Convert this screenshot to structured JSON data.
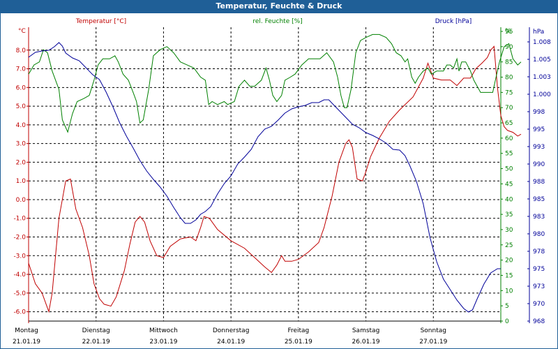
{
  "window": {
    "title": "Temperatur, Feuchte & Druck"
  },
  "chart_data": {
    "type": "line",
    "title": "Temperatur, Feuchte & Druck",
    "x_ticks": [
      {
        "day": "Montag",
        "date": "21.01.19"
      },
      {
        "day": "Dienstag",
        "date": "22.01.19"
      },
      {
        "day": "Mittwoch",
        "date": "23.01.19"
      },
      {
        "day": "Donnerstag",
        "date": "24.01.19"
      },
      {
        "day": "Freitag",
        "date": "25.01.19"
      },
      {
        "day": "Samstag",
        "date": "26.01.19"
      },
      {
        "day": "Sonntag",
        "date": "27.01.19"
      }
    ],
    "x_range": [
      0,
      7
    ],
    "axes": {
      "temp": {
        "label": "Temperatur [°C]",
        "unit": "°C",
        "ylim": [
          -6.5,
          9.0
        ],
        "ticks": [
          "8.0",
          "7.0",
          "6.0",
          "5.0",
          "4.0",
          "3.0",
          "2.0",
          "1.0",
          "0.0",
          "-1.0",
          "-2.0",
          "-3.0",
          "-4.0",
          "-5.0",
          "-6.0"
        ],
        "tick_values": [
          8,
          7,
          6,
          5,
          4,
          3,
          2,
          1,
          0,
          -1,
          -2,
          -3,
          -4,
          -5,
          -6
        ]
      },
      "humidity": {
        "label": "rel. Feuchte [%]",
        "unit": "%",
        "ylim": [
          0,
          95
        ],
        "ticks": [
          "95",
          "90",
          "85",
          "80",
          "75",
          "70",
          "65",
          "60",
          "55",
          "50",
          "45",
          "40",
          "35",
          "30",
          "25",
          "20",
          "15",
          "10",
          "5",
          "0"
        ],
        "tick_values": [
          95,
          90,
          85,
          80,
          75,
          70,
          65,
          60,
          55,
          50,
          45,
          40,
          35,
          30,
          25,
          20,
          15,
          10,
          5,
          0
        ]
      },
      "pressure": {
        "label": "Druck [hPa]",
        "unit": "hPa",
        "ylim": [
          968,
          1009.5
        ],
        "ticks": [
          "1.008",
          "1.005",
          "1.003",
          "1.000",
          "998",
          "995",
          "993",
          "990",
          "988",
          "985",
          "983",
          "980",
          "978",
          "975",
          "973",
          "970",
          "968"
        ],
        "tick_values": [
          1008,
          1005.5,
          1003,
          1000.5,
          998,
          995.5,
          993,
          990.5,
          988,
          985.5,
          983,
          980.5,
          978,
          975.5,
          973,
          970.5,
          968
        ]
      }
    },
    "series": [
      {
        "name": "Temperatur",
        "axis": "temp",
        "color": "#c00000",
        "points": [
          [
            0,
            -3.4
          ],
          [
            0.1,
            -4.5
          ],
          [
            0.2,
            -5.0
          ],
          [
            0.3,
            -6.0
          ],
          [
            0.35,
            -5.0
          ],
          [
            0.45,
            -1.0
          ],
          [
            0.55,
            1.0
          ],
          [
            0.62,
            1.1
          ],
          [
            0.7,
            -0.5
          ],
          [
            0.8,
            -1.5
          ],
          [
            0.9,
            -3.0
          ],
          [
            0.97,
            -4.5
          ],
          [
            1.05,
            -5.3
          ],
          [
            1.12,
            -5.6
          ],
          [
            1.22,
            -5.7
          ],
          [
            1.3,
            -5.2
          ],
          [
            1.42,
            -3.8
          ],
          [
            1.5,
            -2.4
          ],
          [
            1.58,
            -1.2
          ],
          [
            1.65,
            -0.9
          ],
          [
            1.72,
            -1.2
          ],
          [
            1.8,
            -2.2
          ],
          [
            1.9,
            -3.0
          ],
          [
            2.0,
            -3.1
          ],
          [
            2.1,
            -2.5
          ],
          [
            2.25,
            -2.1
          ],
          [
            2.4,
            -2.0
          ],
          [
            2.48,
            -2.2
          ],
          [
            2.55,
            -1.5
          ],
          [
            2.6,
            -0.9
          ],
          [
            2.68,
            -1.0
          ],
          [
            2.8,
            -1.6
          ],
          [
            3.0,
            -2.2
          ],
          [
            3.2,
            -2.6
          ],
          [
            3.38,
            -3.2
          ],
          [
            3.5,
            -3.6
          ],
          [
            3.6,
            -3.9
          ],
          [
            3.68,
            -3.5
          ],
          [
            3.75,
            -3.0
          ],
          [
            3.8,
            -3.3
          ],
          [
            3.9,
            -3.3
          ],
          [
            4.0,
            -3.2
          ],
          [
            4.15,
            -2.8
          ],
          [
            4.3,
            -2.3
          ],
          [
            4.38,
            -1.5
          ],
          [
            4.45,
            -0.5
          ],
          [
            4.5,
            0.2
          ],
          [
            4.6,
            2.0
          ],
          [
            4.7,
            3.0
          ],
          [
            4.75,
            3.2
          ],
          [
            4.8,
            2.8
          ],
          [
            4.87,
            1.1
          ],
          [
            4.95,
            1.0
          ],
          [
            5.0,
            1.5
          ],
          [
            5.07,
            2.3
          ],
          [
            5.2,
            3.3
          ],
          [
            5.35,
            4.2
          ],
          [
            5.5,
            4.8
          ],
          [
            5.7,
            5.5
          ],
          [
            5.85,
            6.5
          ],
          [
            5.92,
            7.3
          ],
          [
            6.0,
            6.5
          ],
          [
            6.12,
            6.4
          ],
          [
            6.25,
            6.4
          ],
          [
            6.35,
            6.1
          ],
          [
            6.45,
            6.5
          ],
          [
            6.55,
            6.5
          ],
          [
            6.63,
            7.0
          ],
          [
            6.72,
            7.3
          ],
          [
            6.8,
            7.6
          ],
          [
            6.85,
            8.0
          ],
          [
            6.9,
            8.2
          ],
          [
            6.95,
            6.0
          ],
          [
            7.0,
            4.5
          ],
          [
            7.05,
            3.9
          ],
          [
            7.1,
            3.7
          ],
          [
            7.18,
            3.6
          ],
          [
            7.25,
            3.4
          ],
          [
            7.3,
            3.5
          ]
        ]
      },
      {
        "name": "rel. Feuchte",
        "axis": "humidity",
        "color": "#008000",
        "points": [
          [
            0,
            81
          ],
          [
            0.08,
            84
          ],
          [
            0.16,
            85
          ],
          [
            0.22,
            89
          ],
          [
            0.28,
            88
          ],
          [
            0.35,
            82
          ],
          [
            0.45,
            76
          ],
          [
            0.5,
            66
          ],
          [
            0.58,
            62
          ],
          [
            0.65,
            68
          ],
          [
            0.72,
            72
          ],
          [
            0.82,
            73
          ],
          [
            0.9,
            74
          ],
          [
            0.97,
            79
          ],
          [
            1.03,
            84
          ],
          [
            1.1,
            86
          ],
          [
            1.2,
            86
          ],
          [
            1.28,
            87
          ],
          [
            1.33,
            85
          ],
          [
            1.4,
            81
          ],
          [
            1.48,
            79
          ],
          [
            1.55,
            75
          ],
          [
            1.6,
            72
          ],
          [
            1.65,
            65
          ],
          [
            1.7,
            66
          ],
          [
            1.78,
            76
          ],
          [
            1.85,
            87
          ],
          [
            1.95,
            89
          ],
          [
            2.05,
            90
          ],
          [
            2.15,
            88
          ],
          [
            2.25,
            85
          ],
          [
            2.35,
            84
          ],
          [
            2.45,
            83
          ],
          [
            2.55,
            80
          ],
          [
            2.62,
            79
          ],
          [
            2.67,
            71
          ],
          [
            2.72,
            72
          ],
          [
            2.8,
            71
          ],
          [
            2.9,
            72
          ],
          [
            2.95,
            71
          ],
          [
            3.05,
            72
          ],
          [
            3.12,
            77
          ],
          [
            3.2,
            79
          ],
          [
            3.28,
            77
          ],
          [
            3.35,
            77
          ],
          [
            3.45,
            79
          ],
          [
            3.52,
            83
          ],
          [
            3.57,
            79
          ],
          [
            3.62,
            74
          ],
          [
            3.68,
            72
          ],
          [
            3.75,
            74
          ],
          [
            3.8,
            79
          ],
          [
            3.88,
            80
          ],
          [
            3.95,
            81
          ],
          [
            4.05,
            84
          ],
          [
            4.15,
            86
          ],
          [
            4.25,
            86
          ],
          [
            4.32,
            86
          ],
          [
            4.42,
            88
          ],
          [
            4.52,
            85
          ],
          [
            4.58,
            80
          ],
          [
            4.63,
            74
          ],
          [
            4.68,
            70
          ],
          [
            4.72,
            70
          ],
          [
            4.78,
            76
          ],
          [
            4.85,
            88
          ],
          [
            4.92,
            92
          ],
          [
            5.0,
            93
          ],
          [
            5.1,
            94
          ],
          [
            5.2,
            94
          ],
          [
            5.3,
            93
          ],
          [
            5.38,
            91
          ],
          [
            5.45,
            88
          ],
          [
            5.52,
            87
          ],
          [
            5.58,
            85
          ],
          [
            5.62,
            86
          ],
          [
            5.68,
            80
          ],
          [
            5.73,
            78
          ],
          [
            5.78,
            80
          ],
          [
            5.85,
            82
          ],
          [
            5.92,
            83
          ],
          [
            5.97,
            81
          ],
          [
            6.05,
            82
          ],
          [
            6.15,
            82
          ],
          [
            6.2,
            84
          ],
          [
            6.25,
            84
          ],
          [
            6.3,
            83
          ],
          [
            6.35,
            86
          ],
          [
            6.38,
            82
          ],
          [
            6.42,
            85
          ],
          [
            6.48,
            85
          ],
          [
            6.55,
            82
          ],
          [
            6.6,
            79
          ],
          [
            6.7,
            75
          ],
          [
            6.8,
            75
          ],
          [
            6.88,
            75
          ],
          [
            6.93,
            80
          ],
          [
            6.98,
            85
          ],
          [
            7.05,
            90
          ],
          [
            7.12,
            91
          ],
          [
            7.18,
            86
          ],
          [
            7.25,
            84
          ],
          [
            7.3,
            85
          ]
        ]
      },
      {
        "name": "Druck",
        "axis": "pressure",
        "color": "#000099",
        "points": [
          [
            0,
            1005.8
          ],
          [
            0.1,
            1006.5
          ],
          [
            0.2,
            1006.7
          ],
          [
            0.3,
            1006.8
          ],
          [
            0.38,
            1007.3
          ],
          [
            0.45,
            1007.9
          ],
          [
            0.5,
            1007.4
          ],
          [
            0.55,
            1006.4
          ],
          [
            0.65,
            1005.7
          ],
          [
            0.75,
            1005.3
          ],
          [
            0.85,
            1004.3
          ],
          [
            0.95,
            1003.3
          ],
          [
            1.05,
            1002.6
          ],
          [
            1.15,
            1000.8
          ],
          [
            1.25,
            998.7
          ],
          [
            1.35,
            996.4
          ],
          [
            1.45,
            994.5
          ],
          [
            1.55,
            992.8
          ],
          [
            1.65,
            991.0
          ],
          [
            1.75,
            989.5
          ],
          [
            1.85,
            988.3
          ],
          [
            1.95,
            987.2
          ],
          [
            2.05,
            985.9
          ],
          [
            2.15,
            984.3
          ],
          [
            2.25,
            982.8
          ],
          [
            2.32,
            982.0
          ],
          [
            2.4,
            982.0
          ],
          [
            2.48,
            982.5
          ],
          [
            2.55,
            983.3
          ],
          [
            2.62,
            983.7
          ],
          [
            2.7,
            984.4
          ],
          [
            2.8,
            986.2
          ],
          [
            2.9,
            987.7
          ],
          [
            3.0,
            988.8
          ],
          [
            3.1,
            990.5
          ],
          [
            3.2,
            991.5
          ],
          [
            3.3,
            992.6
          ],
          [
            3.4,
            994.4
          ],
          [
            3.5,
            995.5
          ],
          [
            3.6,
            995.9
          ],
          [
            3.7,
            996.8
          ],
          [
            3.8,
            997.8
          ],
          [
            3.9,
            998.4
          ],
          [
            4.0,
            998.7
          ],
          [
            4.1,
            998.9
          ],
          [
            4.2,
            999.3
          ],
          [
            4.3,
            999.3
          ],
          [
            4.38,
            999.7
          ],
          [
            4.45,
            999.7
          ],
          [
            4.52,
            999.0
          ],
          [
            4.6,
            998.2
          ],
          [
            4.7,
            997.2
          ],
          [
            4.8,
            996.2
          ],
          [
            4.9,
            995.7
          ],
          [
            5.0,
            995.0
          ],
          [
            5.1,
            994.6
          ],
          [
            5.2,
            994.1
          ],
          [
            5.3,
            993.5
          ],
          [
            5.4,
            992.6
          ],
          [
            5.5,
            992.5
          ],
          [
            5.58,
            991.7
          ],
          [
            5.65,
            990.3
          ],
          [
            5.75,
            988.0
          ],
          [
            5.85,
            984.8
          ],
          [
            5.95,
            980.0
          ],
          [
            6.05,
            976.5
          ],
          [
            6.15,
            974.0
          ],
          [
            6.25,
            972.5
          ],
          [
            6.35,
            971.0
          ],
          [
            6.45,
            969.8
          ],
          [
            6.52,
            969.3
          ],
          [
            6.58,
            969.6
          ],
          [
            6.65,
            971.2
          ],
          [
            6.75,
            973.3
          ],
          [
            6.85,
            974.9
          ],
          [
            6.95,
            975.5
          ],
          [
            7.0,
            975.5
          ]
        ]
      }
    ],
    "grid": true
  }
}
